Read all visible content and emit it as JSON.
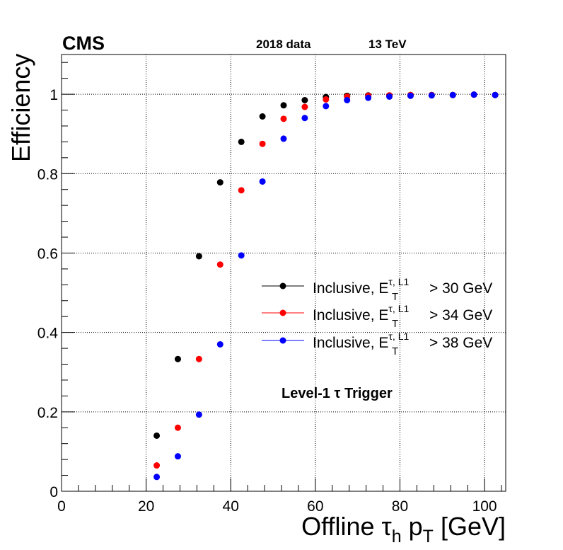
{
  "header": {
    "experiment": "CMS",
    "dataset": "2018 data",
    "energy": "13 TeV"
  },
  "annotation": "Level-1 τ Trigger",
  "chart_data": {
    "type": "scatter",
    "xlabel": "Offline τh pT [GeV]",
    "ylabel": "Efficiency",
    "xlim": [
      0,
      105
    ],
    "ylim": [
      0,
      1.1
    ],
    "x_ticks": [
      0,
      20,
      40,
      60,
      80,
      100
    ],
    "y_ticks": [
      0,
      0.2,
      0.4,
      0.6,
      0.8,
      1
    ],
    "x_tick_labels": [
      "0",
      "20",
      "40",
      "60",
      "80",
      "100"
    ],
    "y_tick_labels": [
      "0",
      "0.2",
      "0.4",
      "0.6",
      "0.8",
      "1"
    ],
    "grid": true,
    "legend_position": "center-right",
    "x": [
      22.5,
      27.5,
      32.5,
      37.5,
      42.5,
      47.5,
      52.5,
      57.5,
      62.5,
      67.5,
      72.5,
      77.5,
      82.5,
      87.5,
      92.5,
      97.5,
      102.5
    ],
    "series": [
      {
        "name": "Inclusive, E_T^{τ, L1} > 30 GeV",
        "legend_text": "Inclusive, E",
        "legend_sup": "τ, L1",
        "legend_sub": "T",
        "legend_tail": "> 30 GeV",
        "color": "#000000",
        "values": [
          0.14,
          0.333,
          0.592,
          0.778,
          0.88,
          0.944,
          0.972,
          0.985,
          0.993,
          0.996,
          0.997,
          0.997,
          0.998,
          0.998,
          0.998,
          0.999,
          0.998
        ]
      },
      {
        "name": "Inclusive, E_T^{τ, L1} > 34 GeV",
        "legend_text": "Inclusive, E",
        "legend_sup": "τ, L1",
        "legend_sub": "T",
        "legend_tail": "> 34 GeV",
        "color": "#ff0000",
        "values": [
          0.065,
          0.16,
          0.333,
          0.571,
          0.758,
          0.875,
          0.938,
          0.968,
          0.987,
          0.994,
          0.996,
          0.997,
          0.998,
          0.998,
          0.998,
          0.999,
          0.998
        ]
      },
      {
        "name": "Inclusive, E_T^{τ, L1} > 38 GeV",
        "legend_text": "Inclusive, E",
        "legend_sup": "τ, L1",
        "legend_sub": "T",
        "legend_tail": "> 38 GeV",
        "color": "#0000ff",
        "values": [
          0.036,
          0.088,
          0.193,
          0.37,
          0.594,
          0.78,
          0.888,
          0.94,
          0.97,
          0.985,
          0.991,
          0.994,
          0.996,
          0.997,
          0.998,
          0.999,
          0.998
        ]
      }
    ]
  }
}
